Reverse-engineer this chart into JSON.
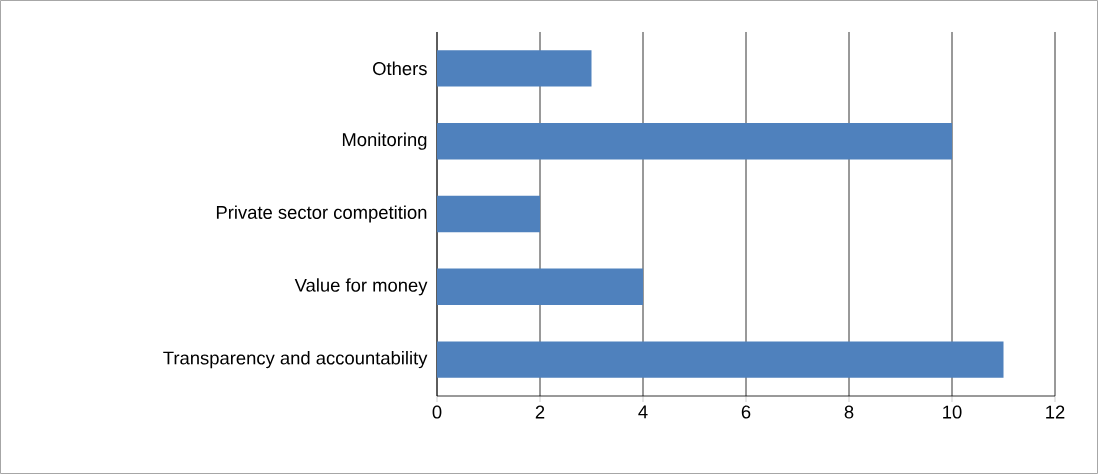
{
  "chart_data": {
    "type": "bar",
    "orientation": "horizontal",
    "categories": [
      "Others",
      "Monitoring",
      "Private sector competition",
      "Value for money",
      "Transparency and accountability"
    ],
    "values": [
      3,
      10,
      2,
      4,
      11
    ],
    "color": "#4f81bd",
    "xlim": [
      0,
      12
    ],
    "xticks": [
      0,
      2,
      4,
      6,
      8,
      10,
      12
    ],
    "grid": "x"
  }
}
